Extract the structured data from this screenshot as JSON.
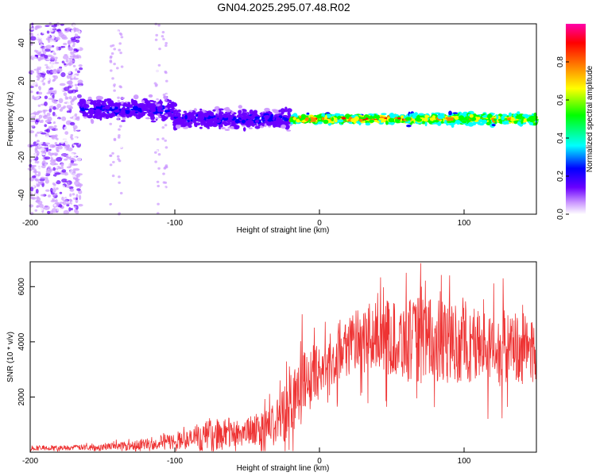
{
  "title": "GN04.2025.295.07.48.R02",
  "chart_data": [
    {
      "type": "heatmap",
      "xlabel": "Height of straight line (km)",
      "ylabel": "Frequency (Hz)",
      "xlim": [
        -200,
        150
      ],
      "ylim": [
        -50,
        50
      ],
      "xticks": [
        -200,
        -100,
        0,
        100
      ],
      "yticks": [
        -40,
        -20,
        0,
        20,
        40
      ],
      "colorbar": {
        "label": "Normalized spectral amplitude",
        "range": [
          0,
          1
        ],
        "ticks": [
          0.0,
          0.2,
          0.4,
          0.6,
          0.8
        ],
        "colormap": "rainbow",
        "colors": [
          "#ffffff",
          "#cc99ff",
          "#6a00ff",
          "#0000ff",
          "#00ffff",
          "#00ff00",
          "#ffff00",
          "#ff7f00",
          "#ff0000",
          "#ff00aa"
        ]
      },
      "bands": [
        {
          "x_range": [
            -200,
            -165
          ],
          "freq_center": 0,
          "freq_halfwidth": 50,
          "amplitude": 0.08,
          "note": "diffuse noise"
        },
        {
          "x_range": [
            -165,
            -100
          ],
          "freq_center": 5,
          "freq_halfwidth": 8,
          "amplitude": 0.25
        },
        {
          "x_range": [
            -100,
            -20
          ],
          "freq_center": 0,
          "freq_halfwidth": 7,
          "amplitude": 0.25
        },
        {
          "x_range": [
            -20,
            60
          ],
          "freq_center": 0,
          "freq_halfwidth": 3,
          "amplitude": 0.85
        },
        {
          "x_range": [
            60,
            150
          ],
          "freq_center": 0,
          "freq_halfwidth": 4,
          "amplitude": 0.75
        }
      ],
      "grid": false,
      "legend": "colorbar-right"
    },
    {
      "type": "line",
      "xlabel": "Height of straight line (km)",
      "ylabel": "SNR (10 * v/v)",
      "xlim": [
        -200,
        150
      ],
      "ylim": [
        0,
        6900
      ],
      "xticks": [
        -200,
        -100,
        0,
        100
      ],
      "yticks": [
        2000,
        4000,
        6000
      ],
      "color": "#ee3333",
      "grid": false,
      "series": [
        {
          "x": [
            -200,
            -190,
            -180,
            -170,
            -160,
            -150,
            -140,
            -130,
            -120,
            -110,
            -100,
            -90,
            -80,
            -70,
            -60,
            -50,
            -40,
            -30,
            -25,
            -20,
            -15,
            -10,
            -5,
            0,
            5,
            10,
            15,
            20,
            25,
            30,
            35,
            40,
            45,
            50,
            55,
            60,
            65,
            70,
            75,
            80,
            85,
            90,
            95,
            100,
            105,
            110,
            115,
            120,
            125,
            130,
            135,
            140,
            145,
            150
          ],
          "y_base": [
            150,
            150,
            160,
            170,
            180,
            200,
            230,
            260,
            300,
            350,
            400,
            450,
            550,
            650,
            700,
            750,
            850,
            1000,
            1400,
            1900,
            2300,
            2600,
            2800,
            2900,
            3200,
            3500,
            3700,
            3900,
            4000,
            4050,
            4100,
            4150,
            4150,
            4100,
            4100,
            4050,
            4050,
            4100,
            4050,
            4000,
            4000,
            3950,
            3950,
            3900,
            3900,
            3850,
            3900,
            3850,
            3800,
            3800,
            3750,
            3750,
            3700,
            3650
          ],
          "y_spread": [
            150,
            150,
            150,
            160,
            180,
            200,
            250,
            300,
            350,
            450,
            500,
            600,
            900,
            1000,
            900,
            850,
            1100,
            1400,
            1800,
            2200,
            2000,
            1900,
            1800,
            1600,
            1600,
            1700,
            1800,
            1900,
            1900,
            2000,
            2100,
            2200,
            2300,
            2300,
            2400,
            2500,
            2500,
            2700,
            2600,
            2500,
            2500,
            2500,
            2400,
            2400,
            2400,
            2400,
            2300,
            2300,
            2300,
            2200,
            2200,
            2200,
            2200,
            2200
          ],
          "peaks": [
            {
              "x": 70,
              "y": 6850
            },
            {
              "x": -12,
              "y": 5000
            },
            {
              "x": 60,
              "y": 6500
            },
            {
              "x": 127,
              "y": 6300
            }
          ]
        }
      ]
    }
  ]
}
